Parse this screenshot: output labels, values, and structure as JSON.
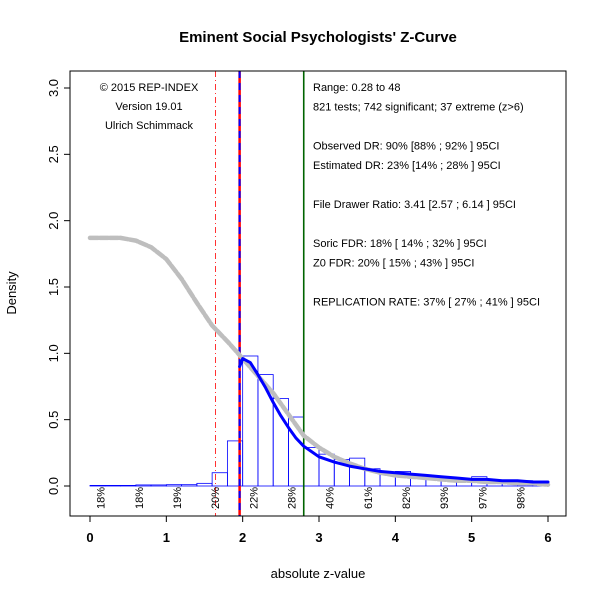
{
  "chart_data": {
    "type": "histogram",
    "title": "Eminent Social Psychologists'  Z-Curve",
    "xlabel": "absolute z-value",
    "ylabel": "Density",
    "xlim": [
      0,
      6
    ],
    "ylim": [
      0,
      3.0
    ],
    "x_ticks": [
      "0",
      "1",
      "2",
      "3",
      "4",
      "5",
      "6"
    ],
    "y_ticks": [
      "0.0",
      "0.5",
      "1.0",
      "1.5",
      "2.0",
      "2.5",
      "3.0"
    ],
    "histogram": {
      "bin_width": 0.2,
      "bars": [
        {
          "x0": 0.0,
          "h": 0.0
        },
        {
          "x0": 0.2,
          "h": 0.003
        },
        {
          "x0": 0.4,
          "h": 0.003
        },
        {
          "x0": 0.6,
          "h": 0.008
        },
        {
          "x0": 0.8,
          "h": 0.008
        },
        {
          "x0": 1.0,
          "h": 0.01
        },
        {
          "x0": 1.2,
          "h": 0.01
        },
        {
          "x0": 1.4,
          "h": 0.02
        },
        {
          "x0": 1.6,
          "h": 0.1
        },
        {
          "x0": 1.8,
          "h": 0.34
        },
        {
          "x0": 2.0,
          "h": 0.98
        },
        {
          "x0": 2.2,
          "h": 0.84
        },
        {
          "x0": 2.4,
          "h": 0.66
        },
        {
          "x0": 2.6,
          "h": 0.52
        },
        {
          "x0": 2.8,
          "h": 0.29
        },
        {
          "x0": 3.0,
          "h": 0.24
        },
        {
          "x0": 3.2,
          "h": 0.2
        },
        {
          "x0": 3.4,
          "h": 0.21
        },
        {
          "x0": 3.6,
          "h": 0.13
        },
        {
          "x0": 3.8,
          "h": 0.1
        },
        {
          "x0": 4.0,
          "h": 0.11
        },
        {
          "x0": 4.2,
          "h": 0.07
        },
        {
          "x0": 4.4,
          "h": 0.05
        },
        {
          "x0": 4.6,
          "h": 0.04
        },
        {
          "x0": 4.8,
          "h": 0.04
        },
        {
          "x0": 5.0,
          "h": 0.07
        },
        {
          "x0": 5.2,
          "h": 0.03
        },
        {
          "x0": 5.4,
          "h": 0.02
        },
        {
          "x0": 5.6,
          "h": 0.04
        },
        {
          "x0": 5.8,
          "h": 0.03
        }
      ],
      "bar_color": "#0000ff"
    },
    "series": [
      {
        "color": "#bebebe",
        "style": "dashed-thick",
        "x": [
          0.0,
          0.2,
          0.4,
          0.6,
          0.8,
          1.0,
          1.2,
          1.4,
          1.6,
          1.8,
          2.0,
          2.2,
          2.4,
          2.6,
          2.8,
          3.0,
          3.2,
          3.4,
          3.6,
          3.8,
          4.0,
          4.2,
          4.4,
          4.6,
          4.8,
          5.0,
          5.2,
          5.4,
          5.6,
          5.8,
          6.0
        ],
        "y": [
          1.87,
          1.87,
          1.87,
          1.85,
          1.8,
          1.71,
          1.56,
          1.38,
          1.21,
          1.09,
          0.96,
          0.83,
          0.7,
          0.54,
          0.38,
          0.29,
          0.22,
          0.17,
          0.13,
          0.1,
          0.08,
          0.07,
          0.06,
          0.05,
          0.04,
          0.04,
          0.03,
          0.03,
          0.02,
          0.02,
          0.01
        ]
      },
      {
        "color": "#0000ff",
        "style": "solid-thick",
        "x": [
          1.96,
          2.0,
          2.1,
          2.2,
          2.3,
          2.4,
          2.5,
          2.6,
          2.7,
          2.8,
          2.9,
          3.0,
          3.2,
          3.4,
          3.6,
          3.8,
          4.0,
          4.2,
          4.4,
          4.6,
          4.8,
          5.0,
          5.2,
          5.4,
          5.6,
          5.8,
          6.0
        ],
        "y": [
          0.9,
          0.96,
          0.93,
          0.84,
          0.74,
          0.63,
          0.53,
          0.44,
          0.36,
          0.3,
          0.26,
          0.22,
          0.18,
          0.15,
          0.13,
          0.11,
          0.1,
          0.09,
          0.08,
          0.07,
          0.06,
          0.05,
          0.05,
          0.04,
          0.04,
          0.03,
          0.03
        ]
      }
    ],
    "vertical_lines": [
      {
        "x": 1.645,
        "color": "#ff0000",
        "style": "dashdot"
      },
      {
        "x": 1.96,
        "color": "#ff0000",
        "style": "solid-thick"
      },
      {
        "x": 1.96,
        "color": "#0000ff",
        "style": "dashed-thick"
      },
      {
        "x": 2.8,
        "color": "#006400",
        "style": "solid"
      }
    ],
    "bottom_percent_labels": [
      {
        "x": 0.14,
        "text": "18%"
      },
      {
        "x": 0.64,
        "text": "18%"
      },
      {
        "x": 1.14,
        "text": "19%"
      },
      {
        "x": 1.64,
        "text": "20%"
      },
      {
        "x": 2.14,
        "text": "22%"
      },
      {
        "x": 2.64,
        "text": "28%"
      },
      {
        "x": 3.14,
        "text": "40%"
      },
      {
        "x": 3.64,
        "text": "61%"
      },
      {
        "x": 4.14,
        "text": "82%"
      },
      {
        "x": 4.64,
        "text": "93%"
      },
      {
        "x": 5.14,
        "text": "97%"
      },
      {
        "x": 5.64,
        "text": "98%"
      }
    ],
    "left_annotations": [
      "© 2015 REP-INDEX",
      "Version 19.01",
      "Ulrich Schimmack"
    ],
    "right_annotations": [
      "Range: 0.28 to 48",
      "821 tests; 742 significant; 37 extreme (z>6)",
      "",
      "Observed DR: 90% [88% ; 92% ] 95CI",
      "Estimated DR: 23% [14% ; 28% ] 95CI",
      "",
      "File Drawer Ratio: 3.41 [2.57 ; 6.14 ] 95CI",
      "",
      "Soric FDR: 18% [ 14% ; 32% ] 95CI",
      "Z0 FDR: 20% [ 15% ; 43% ] 95CI",
      "",
      "REPLICATION RATE: 37% [ 27% ; 41% ] 95CI"
    ]
  }
}
